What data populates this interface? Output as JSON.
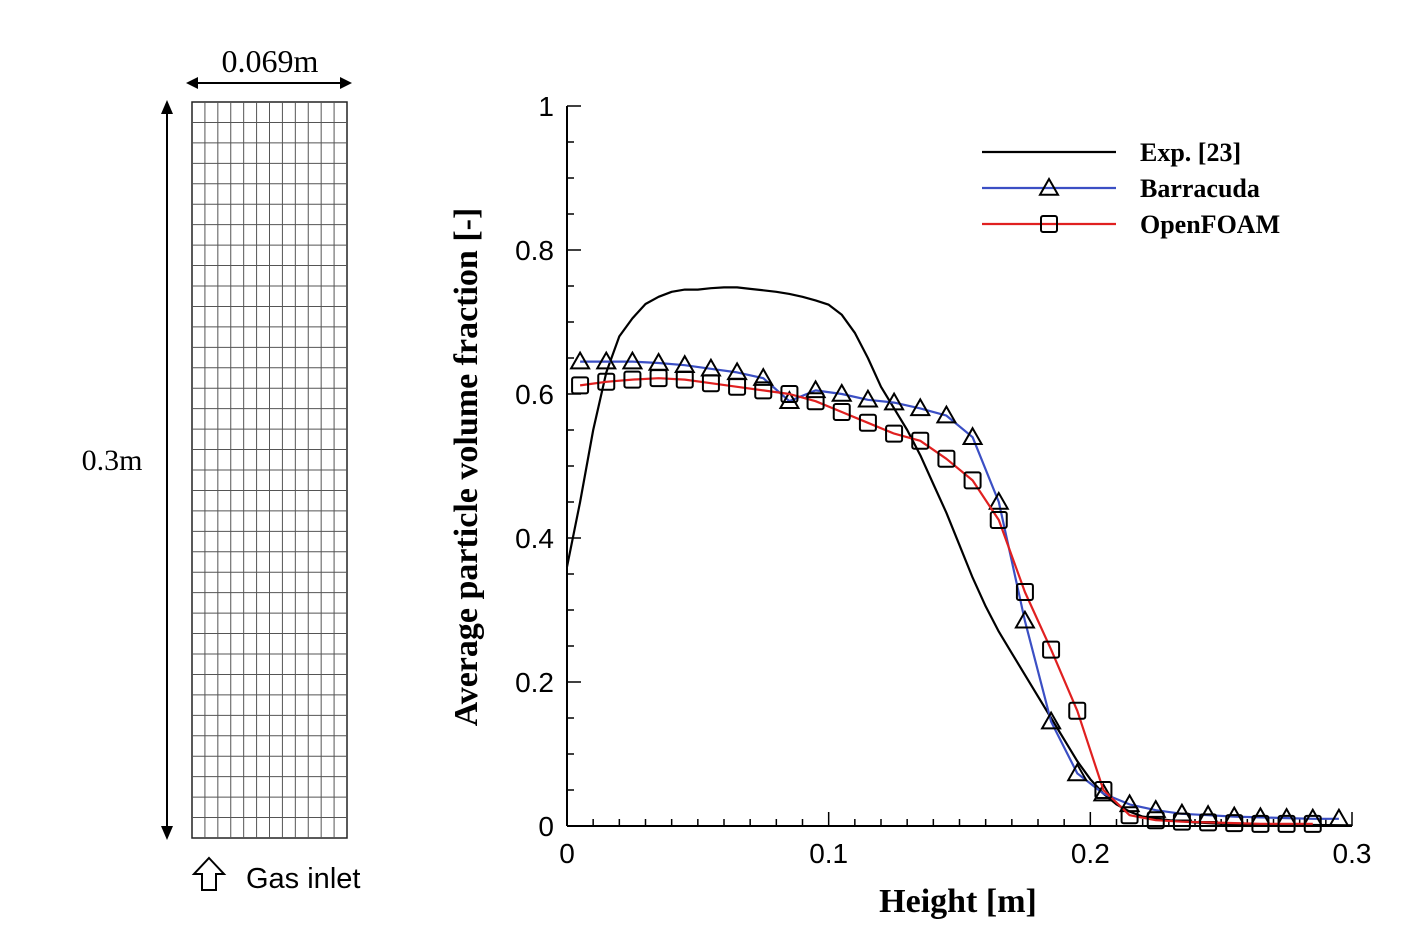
{
  "mesh_diagram": {
    "width_label": "0.069m",
    "height_label": "0.3m",
    "inlet_label": "Gas inlet",
    "grid_columns": 12,
    "grid_rows": 36,
    "inlet_icon": "up-arrow-outline-icon"
  },
  "chart_data": {
    "type": "line",
    "title": "",
    "xlabel": "Height [m]",
    "ylabel": "Average particle volume fraction [-]",
    "xlim": [
      0,
      0.3
    ],
    "ylim": [
      0,
      1
    ],
    "xticks": [
      0,
      0.1,
      0.2,
      0.3
    ],
    "xtick_labels": [
      "0",
      "0.1",
      "0.2",
      "0.3"
    ],
    "yticks": [
      0,
      0.2,
      0.4,
      0.6,
      0.8,
      1
    ],
    "ytick_labels": [
      "0",
      "0.2",
      "0.4",
      "0.6",
      "0.8",
      "1"
    ],
    "grid": false,
    "legend_position": "top-right",
    "series": [
      {
        "name": "Exp. [23]",
        "color": "#000000",
        "marker": "none",
        "x": [
          0,
          0.005,
          0.01,
          0.015,
          0.02,
          0.025,
          0.03,
          0.035,
          0.04,
          0.045,
          0.05,
          0.055,
          0.06,
          0.065,
          0.07,
          0.075,
          0.08,
          0.085,
          0.09,
          0.095,
          0.1,
          0.105,
          0.11,
          0.115,
          0.12,
          0.125,
          0.13,
          0.135,
          0.14,
          0.145,
          0.15,
          0.155,
          0.16,
          0.165,
          0.17,
          0.175,
          0.18,
          0.185,
          0.19,
          0.195,
          0.2,
          0.205,
          0.21,
          0.215,
          0.22,
          0.23,
          0.24,
          0.25,
          0.27,
          0.3
        ],
        "y": [
          0.36,
          0.45,
          0.55,
          0.63,
          0.68,
          0.705,
          0.725,
          0.735,
          0.742,
          0.745,
          0.745,
          0.747,
          0.748,
          0.748,
          0.746,
          0.744,
          0.742,
          0.739,
          0.735,
          0.73,
          0.724,
          0.71,
          0.685,
          0.65,
          0.61,
          0.58,
          0.55,
          0.515,
          0.475,
          0.435,
          0.39,
          0.345,
          0.305,
          0.27,
          0.24,
          0.21,
          0.18,
          0.15,
          0.12,
          0.09,
          0.065,
          0.045,
          0.03,
          0.02,
          0.013,
          0.008,
          0.005,
          0.003,
          0.002,
          0.001
        ]
      },
      {
        "name": "Barracuda",
        "color": "#3b4fc4",
        "marker": "triangle",
        "x": [
          0.005,
          0.015,
          0.025,
          0.035,
          0.045,
          0.055,
          0.065,
          0.075,
          0.085,
          0.095,
          0.105,
          0.115,
          0.125,
          0.135,
          0.145,
          0.155,
          0.165,
          0.175,
          0.185,
          0.195,
          0.205,
          0.215,
          0.225,
          0.235,
          0.245,
          0.255,
          0.265,
          0.275,
          0.285,
          0.295
        ],
        "y": [
          0.645,
          0.645,
          0.645,
          0.643,
          0.64,
          0.635,
          0.63,
          0.622,
          0.59,
          0.605,
          0.6,
          0.592,
          0.588,
          0.58,
          0.57,
          0.54,
          0.45,
          0.285,
          0.145,
          0.073,
          0.045,
          0.03,
          0.022,
          0.017,
          0.015,
          0.013,
          0.012,
          0.011,
          0.01,
          0.01
        ]
      },
      {
        "name": "OpenFOAM",
        "color": "#e02020",
        "marker": "square",
        "x": [
          0.005,
          0.015,
          0.025,
          0.035,
          0.045,
          0.055,
          0.065,
          0.075,
          0.085,
          0.095,
          0.105,
          0.115,
          0.125,
          0.135,
          0.145,
          0.155,
          0.165,
          0.175,
          0.185,
          0.195,
          0.205,
          0.215,
          0.225,
          0.235,
          0.245,
          0.255,
          0.265,
          0.275,
          0.285
        ],
        "y": [
          0.612,
          0.617,
          0.62,
          0.622,
          0.62,
          0.615,
          0.61,
          0.605,
          0.6,
          0.59,
          0.575,
          0.56,
          0.545,
          0.535,
          0.51,
          0.48,
          0.425,
          0.325,
          0.245,
          0.16,
          0.05,
          0.015,
          0.008,
          0.006,
          0.005,
          0.004,
          0.003,
          0.003,
          0.003
        ]
      }
    ]
  }
}
